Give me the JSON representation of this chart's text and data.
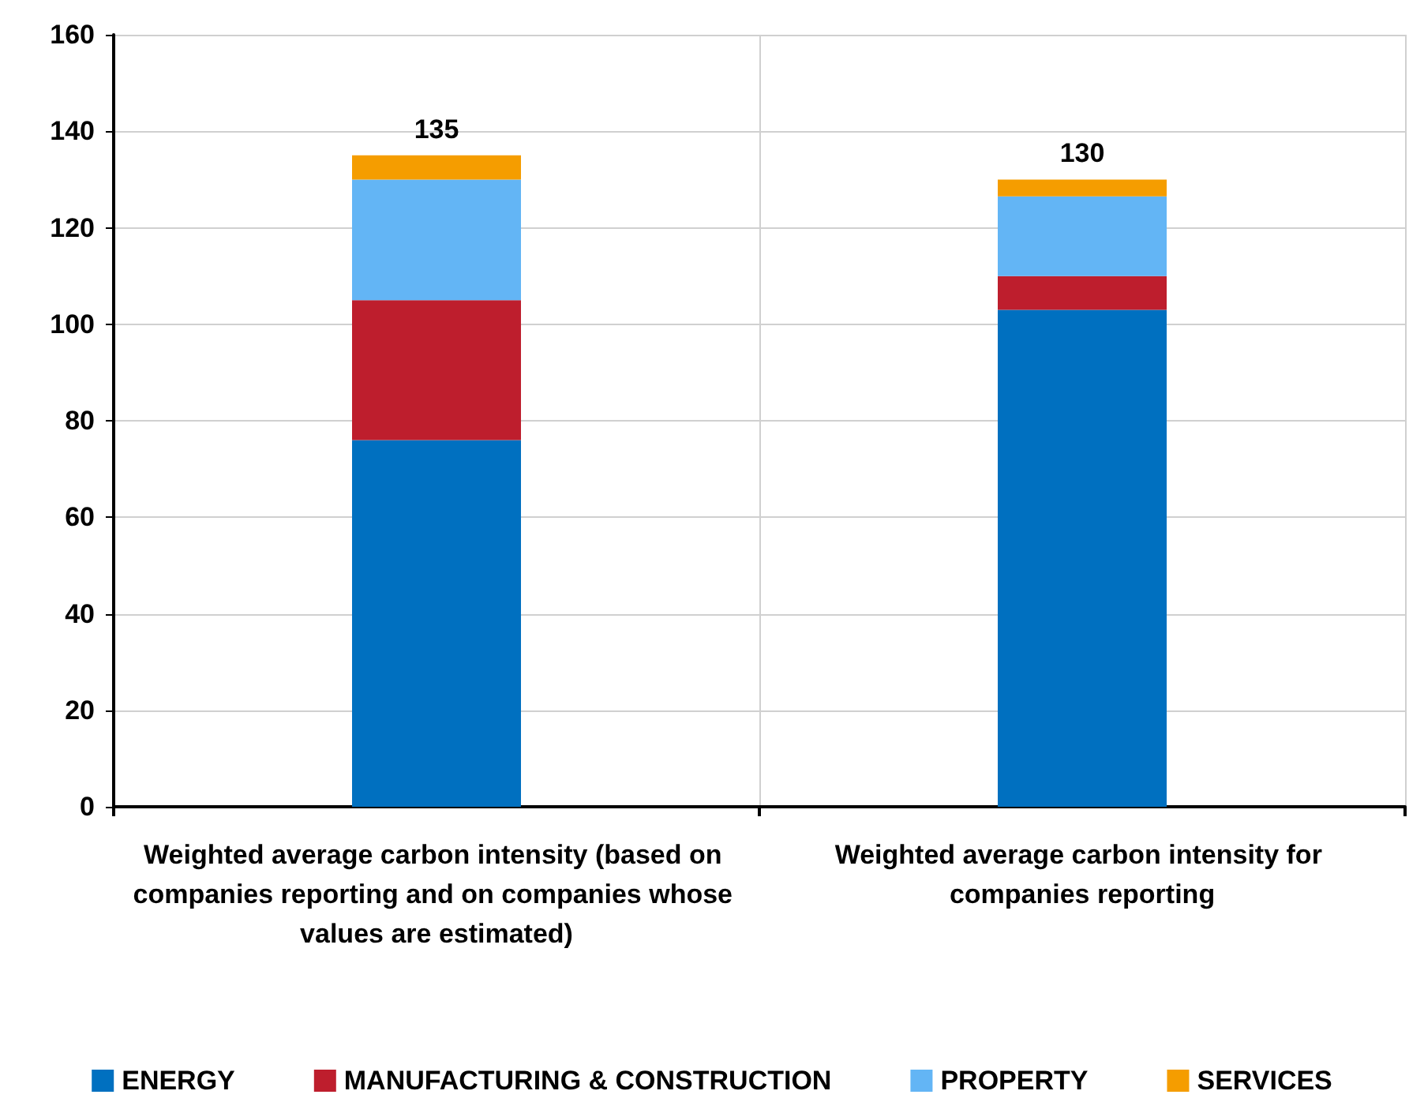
{
  "chart_data": {
    "type": "bar",
    "stacked": true,
    "categories": [
      "Weighted average carbon intensity (based on companies reporting and on companies whose values are estimated)",
      "Weighted average carbon intensity for companies reporting"
    ],
    "series": [
      {
        "name": "ENERGY",
        "color": "#0070c0",
        "values": [
          76,
          103
        ]
      },
      {
        "name": "MANUFACTURING & CONSTRUCTION",
        "color": "#be1e2d",
        "values": [
          29,
          7
        ]
      },
      {
        "name": "PROPERTY",
        "color": "#63b5f5",
        "values": [
          25,
          16.5
        ]
      },
      {
        "name": "SERVICES",
        "color": "#f59d00",
        "values": [
          5,
          3.5
        ]
      }
    ],
    "totals": [
      "135",
      "130"
    ],
    "ylim": [
      0,
      160
    ],
    "yticks": [
      0,
      20,
      40,
      60,
      80,
      100,
      120,
      140,
      160
    ],
    "grid": true,
    "legend": "bottom"
  }
}
